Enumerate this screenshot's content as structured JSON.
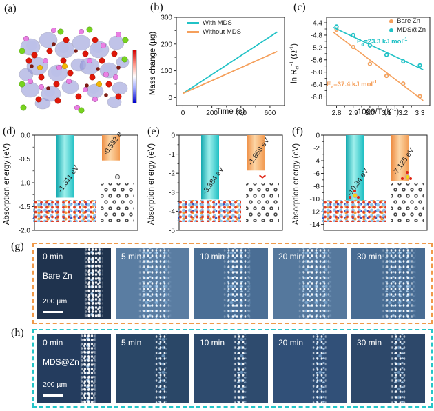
{
  "panels": {
    "a": {
      "label": "(a)"
    },
    "b": {
      "label": "(b)"
    },
    "c": {
      "label": "(c)"
    },
    "d": {
      "label": "(d)"
    },
    "e": {
      "label": "(e)"
    },
    "f": {
      "label": "(f)"
    },
    "g": {
      "label": "(g)"
    },
    "h": {
      "label": "(h)"
    }
  },
  "colors": {
    "cyan": "#21c2c6",
    "orange": "#f5a05c",
    "panel_g_border": "#f09a4a",
    "panel_h_border": "#25c5c8",
    "colorbar_top_red": "#d40000",
    "colorbar_bottom_blue": "#0000cd"
  },
  "chart_data": [
    {
      "id": "b",
      "type": "line",
      "xlabel": "Time (s)",
      "ylabel": "Mass change (µg)",
      "xlim": [
        -45,
        700
      ],
      "ylim": [
        -30,
        300
      ],
      "xticks": [
        0,
        200,
        400,
        600
      ],
      "xtick_labels": [
        "0",
        "200",
        "400",
        "600"
      ],
      "yticks": [
        0,
        100,
        200,
        300
      ],
      "ytick_labels": [
        "0",
        "100",
        "200",
        "300"
      ],
      "legend_position": "top-left",
      "grid": false,
      "series": [
        {
          "name": "With MDS",
          "color": "#21c2c6",
          "x": [
            0,
            650
          ],
          "y": [
            15,
            245
          ]
        },
        {
          "name": "Without MDS",
          "color": "#f5a05c",
          "x": [
            0,
            650
          ],
          "y": [
            15,
            172
          ]
        }
      ]
    },
    {
      "id": "c",
      "type": "scatter",
      "xlabel_parts": {
        "text1": "1000/T (K",
        "sup1": "-1",
        "text2": ")"
      },
      "ylabel_parts": {
        "text1": "ln R",
        "sub1": "ct",
        "sup1": "-1",
        "text2": " (Ω",
        "sup2": "-1",
        "text3": ")"
      },
      "xlim": [
        2.74,
        3.36
      ],
      "ylim": [
        -7.08,
        -4.22
      ],
      "xticks": [
        2.8,
        2.9,
        3.0,
        3.1,
        3.2,
        3.3
      ],
      "xtick_labels": [
        "2.8",
        "2.9",
        "3.0",
        "3.1",
        "3.2",
        "3.3"
      ],
      "yticks": [
        -4.4,
        -4.8,
        -5.2,
        -5.6,
        -6.0,
        -6.4,
        -6.8
      ],
      "ytick_labels": [
        "-4.4",
        "-4.8",
        "-5.2",
        "-5.6",
        "-6.0",
        "-6.4",
        "-6.8"
      ],
      "legend_position": "top-right",
      "grid": false,
      "series": [
        {
          "name": "Bare Zn",
          "color": "#f5a05c",
          "points": [
            [
              2.8,
              -4.62
            ],
            [
              2.9,
              -5.18
            ],
            [
              3.0,
              -5.73
            ],
            [
              3.1,
              -6.12
            ],
            [
              3.2,
              -6.37
            ],
            [
              3.3,
              -6.78
            ]
          ],
          "fit": [
            [
              2.78,
              -4.7
            ],
            [
              3.32,
              -6.92
            ]
          ]
        },
        {
          "name": "MDS@Zn",
          "color": "#21c2c6",
          "points": [
            [
              2.8,
              -4.52
            ],
            [
              2.9,
              -4.8
            ],
            [
              3.0,
              -5.13
            ],
            [
              3.1,
              -5.44
            ],
            [
              3.2,
              -5.65
            ],
            [
              3.3,
              -5.78
            ]
          ],
          "fit": [
            [
              2.78,
              -4.55
            ],
            [
              3.32,
              -5.92
            ]
          ]
        }
      ],
      "annotations": [
        {
          "parts": {
            "t1": "E",
            "sub": "a",
            "t2": "=37.4 kJ mol",
            "sup": "-1"
          },
          "color": "#f5a05c"
        },
        {
          "parts": {
            "t1": "E",
            "sub": "a",
            "t2": "=23.3 kJ mol",
            "sup": "-1"
          },
          "color": "#21c2c6"
        }
      ]
    },
    {
      "id": "d",
      "type": "bar",
      "ylabel": "Absorption energy (eV)",
      "ylim": [
        -2.0,
        0
      ],
      "yticks": [
        0,
        -0.5,
        -1.0,
        -1.5,
        -2.0
      ],
      "ytick_labels": [
        "0.0",
        "-0.5",
        "-1.0",
        "-1.5",
        "-2.0"
      ],
      "bars": [
        {
          "value": -1.311,
          "label": "-1.311 eV",
          "color": "cyan"
        },
        {
          "value": -0.532,
          "label": "-0.532 eV",
          "color": "orange"
        }
      ]
    },
    {
      "id": "e",
      "type": "bar",
      "ylabel": "Absorption energy (eV)",
      "ylim": [
        -5,
        0
      ],
      "yticks": [
        0,
        -1,
        -2,
        -3,
        -4,
        -5
      ],
      "ytick_labels": [
        "0",
        "-1",
        "-2",
        "-3",
        "-4",
        "-5"
      ],
      "bars": [
        {
          "value": -3.384,
          "label": "-3.384 eV",
          "color": "cyan"
        },
        {
          "value": -1.858,
          "label": "-1.858 eV",
          "color": "orange"
        }
      ]
    },
    {
      "id": "f",
      "type": "bar",
      "ylabel": "Absorption energy (eV)",
      "ylim": [
        -14.9,
        0
      ],
      "yticks": [
        0,
        -2,
        -4,
        -6,
        -8,
        -10,
        -12,
        -14
      ],
      "ytick_labels": [
        "0",
        "-2",
        "-4",
        "-6",
        "-8",
        "-10",
        "-12",
        "-14"
      ],
      "bars": [
        {
          "value": -10.34,
          "label": "-10.34 eV",
          "color": "cyan"
        },
        {
          "value": -7.125,
          "label": "-7.125 eV",
          "color": "orange"
        }
      ]
    }
  ],
  "micrographs": {
    "g": {
      "label": "(g)",
      "sample": "Bare Zn",
      "scale_bar": "200 µm",
      "border_color": "#f09a4a",
      "times": [
        "0 min",
        "5 min",
        "10 min",
        "20 min",
        "30 min"
      ]
    },
    "h": {
      "label": "(h)",
      "sample": "MDS@Zn",
      "scale_bar": "200 µm",
      "border_color": "#25c5c8",
      "times": [
        "0 min",
        "5 min",
        "10 min",
        "20 min",
        "30 min"
      ]
    }
  }
}
